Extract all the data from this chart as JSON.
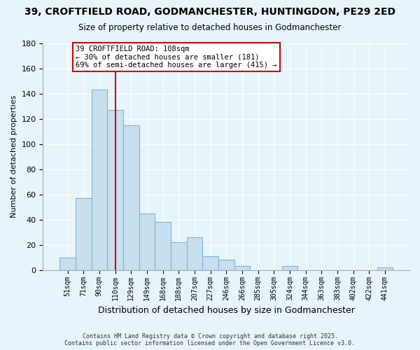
{
  "title": "39, CROFTFIELD ROAD, GODMANCHESTER, HUNTINGDON, PE29 2ED",
  "subtitle": "Size of property relative to detached houses in Godmanchester",
  "xlabel": "Distribution of detached houses by size in Godmanchester",
  "ylabel": "Number of detached properties",
  "bin_labels": [
    "51sqm",
    "71sqm",
    "90sqm",
    "110sqm",
    "129sqm",
    "149sqm",
    "168sqm",
    "188sqm",
    "207sqm",
    "227sqm",
    "246sqm",
    "266sqm",
    "285sqm",
    "305sqm",
    "324sqm",
    "344sqm",
    "363sqm",
    "383sqm",
    "402sqm",
    "422sqm",
    "441sqm"
  ],
  "bar_heights": [
    10,
    57,
    143,
    127,
    115,
    45,
    38,
    22,
    26,
    11,
    8,
    3,
    0,
    0,
    3,
    0,
    0,
    0,
    0,
    0,
    2
  ],
  "bar_color": "#c8dff0",
  "bar_edge_color": "#7ab8d9",
  "vline_x": 3,
  "vline_color": "#cc0000",
  "ylim": [
    0,
    180
  ],
  "yticks": [
    0,
    20,
    40,
    60,
    80,
    100,
    120,
    140,
    160,
    180
  ],
  "annotation_title": "39 CROFTFIELD ROAD: 108sqm",
  "annotation_line1": "← 30% of detached houses are smaller (181)",
  "annotation_line2": "69% of semi-detached houses are larger (415) →",
  "annotation_box_color": "#ffffff",
  "annotation_box_edge": "#cc0000",
  "footer1": "Contains HM Land Registry data © Crown copyright and database right 2025.",
  "footer2": "Contains public sector information licensed under the Open Government Licence v3.0.",
  "bg_color": "#e8f4fb",
  "plot_bg_color": "#e8f4fb",
  "grid_color": "#ffffff",
  "title_fontsize": 10,
  "subtitle_fontsize": 8.5,
  "ylabel_fontsize": 8,
  "xlabel_fontsize": 9
}
